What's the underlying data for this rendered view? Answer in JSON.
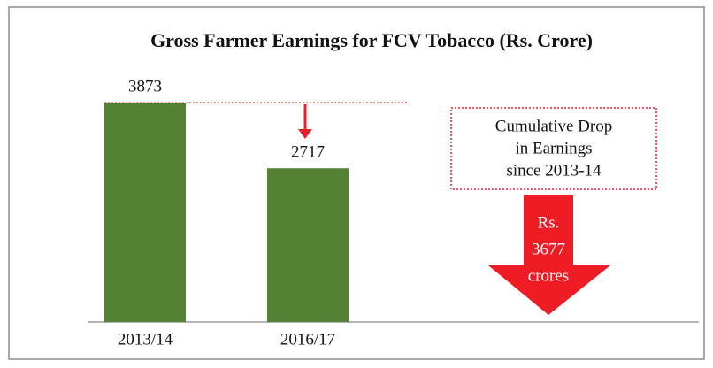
{
  "chart_data": {
    "type": "bar",
    "title": "Gross Farmer Earnings for FCV Tobacco (Rs. Crore)",
    "categories": [
      "2013/14",
      "2016/17"
    ],
    "values": [
      3873,
      2717
    ],
    "color": "#548235",
    "ylim": [
      0,
      4300
    ],
    "annotation_box": [
      "Cumulative Drop",
      "in Earnings",
      "since 2013-14"
    ],
    "arrow_text": [
      "Rs.",
      "3677",
      "crores"
    ]
  }
}
